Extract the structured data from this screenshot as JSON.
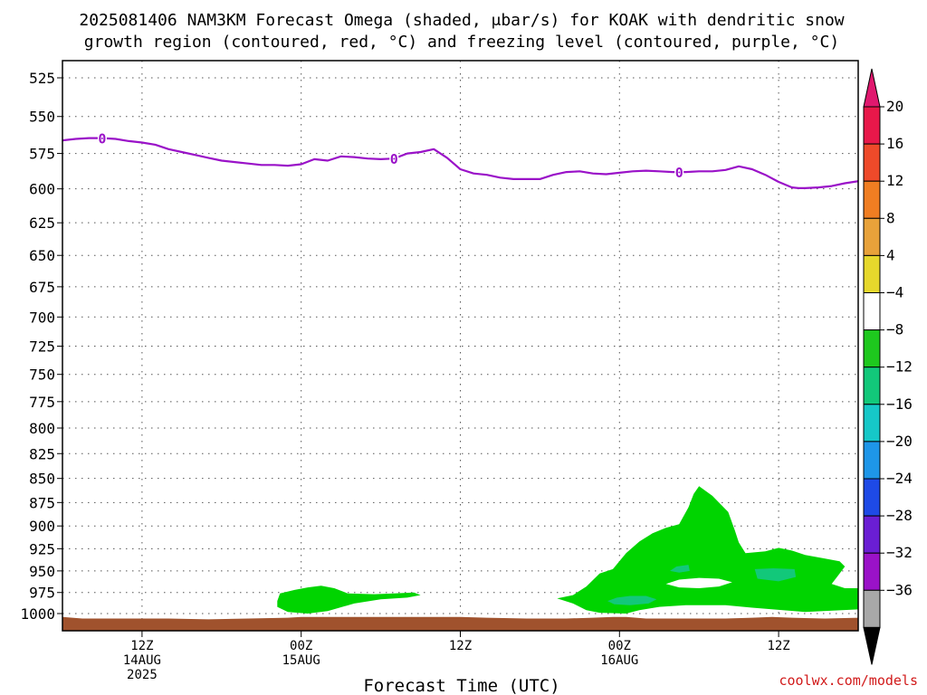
{
  "chart_data": {
    "type": "heatmap",
    "title_line1": "2025081406 NAM3KM Forecast Omega (shaded, μbar/s) for KOAK with dendritic snow",
    "title_line2": "growth region (contoured, red, °C) and freezing level (contoured, purple, °C)",
    "xlabel": "Forecast Time (UTC)",
    "credit": "coolwx.com/models",
    "y_axis": {
      "scale": "pressure",
      "ticks": [
        525,
        550,
        575,
        600,
        625,
        650,
        675,
        700,
        725,
        750,
        775,
        800,
        825,
        850,
        875,
        900,
        925,
        950,
        975,
        1000
      ],
      "range_hPa": [
        513,
        1012
      ]
    },
    "x_axis": {
      "range_hours": [
        0,
        60
      ],
      "ticks": [
        {
          "hour": 6,
          "lines": [
            "12Z",
            "14AUG",
            "2025"
          ]
        },
        {
          "hour": 18,
          "lines": [
            "00Z",
            "15AUG"
          ]
        },
        {
          "hour": 30,
          "lines": [
            "12Z"
          ]
        },
        {
          "hour": 42,
          "lines": [
            "00Z",
            "16AUG"
          ]
        },
        {
          "hour": 54,
          "lines": [
            "12Z"
          ]
        }
      ]
    },
    "colorbar": {
      "labels": [
        "20",
        "16",
        "12",
        "8",
        "4",
        "−4",
        "−8",
        "−12",
        "−16",
        "−20",
        "−24",
        "−28",
        "−32",
        "−36"
      ],
      "colors": [
        "#e8184a",
        "#ee4a2a",
        "#f07e22",
        "#e8a23a",
        "#e6d82c",
        "#ffffff",
        "#1ec81e",
        "#12c87a",
        "#16c8c8",
        "#1e96e8",
        "#1e4ae6",
        "#6a1ed4",
        "#9a12c8",
        "#a8a8a8"
      ],
      "top_triangle_color": "#e0186e",
      "bottom_triangle_color": "#000000"
    },
    "freezing_level": {
      "label": "0",
      "color": "#9a12c8",
      "label_hours": [
        3,
        25,
        46.5
      ],
      "points": [
        [
          0,
          566
        ],
        [
          1,
          565
        ],
        [
          2,
          564.5
        ],
        [
          3,
          564.5
        ],
        [
          4,
          565
        ],
        [
          5,
          566.5
        ],
        [
          6,
          567.5
        ],
        [
          7,
          569
        ],
        [
          8,
          572
        ],
        [
          9,
          574
        ],
        [
          10,
          576
        ],
        [
          11,
          578
        ],
        [
          12,
          580
        ],
        [
          13,
          581
        ],
        [
          14,
          582
        ],
        [
          15,
          583
        ],
        [
          16,
          583
        ],
        [
          17,
          583.5
        ],
        [
          18,
          582.5
        ],
        [
          19,
          579
        ],
        [
          20,
          580
        ],
        [
          21,
          577
        ],
        [
          22,
          577.5
        ],
        [
          23,
          578.5
        ],
        [
          24,
          579
        ],
        [
          25,
          578.5
        ],
        [
          26,
          575
        ],
        [
          27,
          574
        ],
        [
          28,
          572
        ],
        [
          29,
          578
        ],
        [
          30,
          586
        ],
        [
          31,
          589
        ],
        [
          32,
          590
        ],
        [
          33,
          592
        ],
        [
          34,
          593
        ],
        [
          35,
          593
        ],
        [
          36,
          593
        ],
        [
          37,
          590
        ],
        [
          38,
          588
        ],
        [
          39,
          587.5
        ],
        [
          40,
          589
        ],
        [
          41,
          589.5
        ],
        [
          42,
          588.5
        ],
        [
          43,
          587.5
        ],
        [
          44,
          587
        ],
        [
          45,
          587.5
        ],
        [
          46,
          588
        ],
        [
          47,
          588
        ],
        [
          48,
          587.5
        ],
        [
          49,
          587.5
        ],
        [
          50,
          586.5
        ],
        [
          51,
          584
        ],
        [
          52,
          586
        ],
        [
          53,
          590
        ],
        [
          54,
          595
        ],
        [
          55,
          599
        ],
        [
          55.5,
          599.5
        ],
        [
          56,
          599.5
        ],
        [
          57,
          599
        ],
        [
          58,
          598
        ],
        [
          59,
          596
        ],
        [
          60,
          594.5
        ]
      ]
    },
    "omega_regions": [
      {
        "value_range": "-8 to -4",
        "color": "#00d400",
        "points": [
          [
            16.2,
            985
          ],
          [
            16.4,
            976
          ],
          [
            17.5,
            972
          ],
          [
            18.5,
            969
          ],
          [
            19.5,
            967
          ],
          [
            20.5,
            970
          ],
          [
            21.5,
            976
          ],
          [
            23.5,
            977
          ],
          [
            25,
            976
          ],
          [
            26.5,
            975
          ],
          [
            27,
            978
          ],
          [
            26,
            981
          ],
          [
            24,
            983
          ],
          [
            22,
            988
          ],
          [
            20,
            997
          ],
          [
            18.5,
            1000
          ],
          [
            17,
            998
          ],
          [
            16.2,
            992
          ]
        ]
      },
      {
        "value_range": "-8 to -4",
        "color": "#00d400",
        "points": [
          [
            37.3,
            982
          ],
          [
            38.5,
            978
          ],
          [
            39.5,
            968
          ],
          [
            40.5,
            953
          ],
          [
            41.5,
            948
          ],
          [
            42.5,
            930
          ],
          [
            43.5,
            917
          ],
          [
            44.5,
            908
          ],
          [
            45.5,
            902
          ],
          [
            46.5,
            898
          ],
          [
            47.2,
            880
          ],
          [
            47.6,
            866
          ],
          [
            48,
            858
          ],
          [
            49,
            868
          ],
          [
            50.2,
            885
          ],
          [
            50.7,
            905
          ],
          [
            51,
            918
          ],
          [
            51.5,
            930
          ],
          [
            53,
            928
          ],
          [
            54,
            924
          ],
          [
            55,
            927
          ],
          [
            56,
            932
          ],
          [
            57.5,
            936
          ],
          [
            58.6,
            939
          ],
          [
            59,
            945
          ],
          [
            58.5,
            955
          ],
          [
            58,
            965
          ],
          [
            59,
            970
          ],
          [
            60,
            970
          ],
          [
            60,
            995
          ],
          [
            56,
            998
          ],
          [
            52,
            993
          ],
          [
            50,
            990
          ],
          [
            47,
            990
          ],
          [
            45,
            992
          ],
          [
            43.5,
            996
          ],
          [
            42.5,
            1000
          ],
          [
            40.5,
            999
          ],
          [
            39.5,
            996
          ],
          [
            38.5,
            988
          ]
        ]
      },
      {
        "value_range": "-4 to 4",
        "color": "#ffffff",
        "points": [
          [
            45.5,
            965
          ],
          [
            46.5,
            960
          ],
          [
            48,
            958
          ],
          [
            49.5,
            959
          ],
          [
            50.5,
            963
          ],
          [
            49.5,
            968
          ],
          [
            48,
            970
          ],
          [
            46.5,
            969
          ]
        ]
      },
      {
        "value_range": "-12 to -8",
        "color": "#12c87a",
        "points": [
          [
            41.1,
            985
          ],
          [
            41.8,
            981
          ],
          [
            42.8,
            979
          ],
          [
            44,
            979
          ],
          [
            44.8,
            983
          ],
          [
            44.2,
            988
          ],
          [
            42.8,
            990
          ],
          [
            41.6,
            989
          ]
        ]
      },
      {
        "value_range": "-12 to -8",
        "color": "#12c87a",
        "points": [
          [
            52.2,
            948
          ],
          [
            53.6,
            947
          ],
          [
            55.2,
            948
          ],
          [
            55.3,
            957
          ],
          [
            54,
            962
          ],
          [
            52.4,
            959
          ]
        ]
      },
      {
        "value_range": "-12 to -8",
        "color": "#12c87a",
        "points": [
          [
            46.3,
            945
          ],
          [
            47.2,
            943
          ],
          [
            47.3,
            950
          ],
          [
            46.5,
            952
          ],
          [
            45.8,
            950
          ]
        ]
      }
    ],
    "terrain": {
      "color": "#a0522d",
      "points": [
        [
          0,
          1004
        ],
        [
          1.5,
          1006
        ],
        [
          3,
          1006
        ],
        [
          5,
          1006
        ],
        [
          8,
          1006
        ],
        [
          11,
          1007
        ],
        [
          14,
          1006
        ],
        [
          17,
          1005
        ],
        [
          18,
          1004
        ],
        [
          22,
          1004
        ],
        [
          26,
          1004
        ],
        [
          30,
          1004
        ],
        [
          32,
          1005
        ],
        [
          35,
          1006
        ],
        [
          38,
          1006
        ],
        [
          40,
          1005
        ],
        [
          41.5,
          1004
        ],
        [
          42.5,
          1004
        ],
        [
          44,
          1006
        ],
        [
          47,
          1006
        ],
        [
          50,
          1006
        ],
        [
          52,
          1005
        ],
        [
          53.5,
          1004
        ],
        [
          55,
          1005
        ],
        [
          57.5,
          1006
        ],
        [
          60,
          1005
        ]
      ]
    }
  }
}
